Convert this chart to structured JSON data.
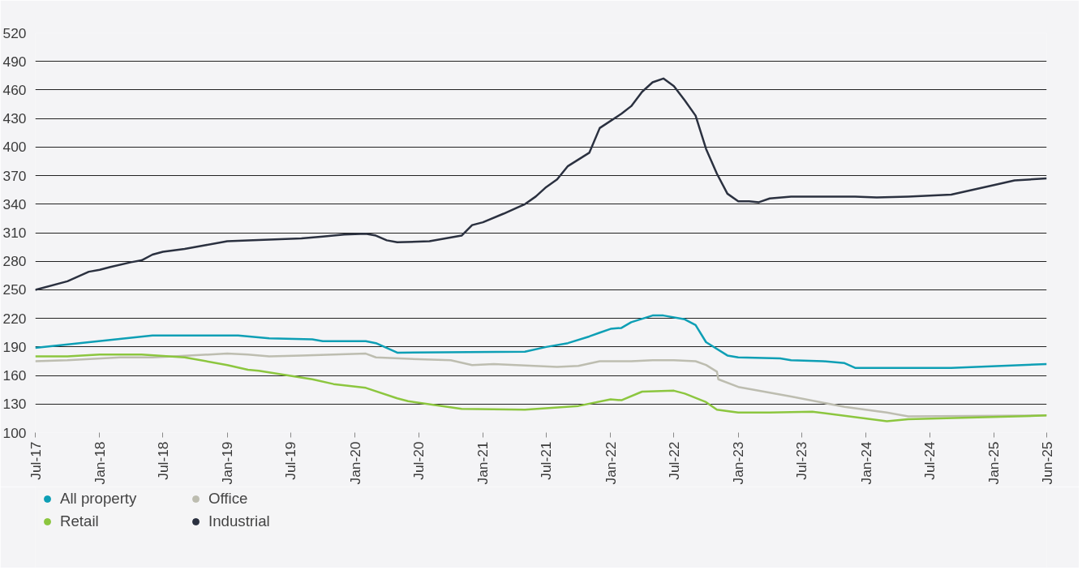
{
  "chart_data": {
    "type": "line",
    "xlim": [
      "2017-07",
      "2025-06"
    ],
    "xticks": [
      {
        "value": "2017-07",
        "label": "Jul-17"
      },
      {
        "value": "2018-01",
        "label": "Jan-18"
      },
      {
        "value": "2018-07",
        "label": "Jul-18"
      },
      {
        "value": "2019-01",
        "label": "Jan-19"
      },
      {
        "value": "2019-07",
        "label": "Jul-19"
      },
      {
        "value": "2020-01",
        "label": "Jan-20"
      },
      {
        "value": "2020-07",
        "label": "Jul-20"
      },
      {
        "value": "2021-01",
        "label": "Jan-21"
      },
      {
        "value": "2021-07",
        "label": "Jul-21"
      },
      {
        "value": "2022-01",
        "label": "Jan-22"
      },
      {
        "value": "2022-07",
        "label": "Jul-22"
      },
      {
        "value": "2023-01",
        "label": "Jan-23"
      },
      {
        "value": "2023-07",
        "label": "Jul-23"
      },
      {
        "value": "2024-01",
        "label": "Jan-24"
      },
      {
        "value": "2024-07",
        "label": "Jul-24"
      },
      {
        "value": "2025-01",
        "label": "Jan-25"
      },
      {
        "value": "2025-06",
        "label": "Jun-25"
      }
    ],
    "ylim": [
      100,
      520
    ],
    "yticks": [
      100,
      130,
      160,
      190,
      220,
      250,
      280,
      310,
      340,
      370,
      400,
      430,
      460,
      490,
      520
    ],
    "grid": "y",
    "legend": "bottom",
    "line_style": "solid",
    "series": [
      {
        "name": "All property",
        "color": "#0e9fb5",
        "x": [
          "2017-07",
          "2018-06",
          "2019-02",
          "2019-05",
          "2019-09",
          "2019-10",
          "2020-02",
          "2020-03",
          "2020-05",
          "2021-05",
          "2021-07",
          "2021-09",
          "2021-11",
          "2021-12",
          "2022-01",
          "2022-02",
          "2022-03",
          "2022-05",
          "2022-06",
          "2022-08",
          "2022-09",
          "2022-10",
          "2022-12",
          "2023-01",
          "2023-05",
          "2023-06",
          "2023-09",
          "2023-11",
          "2023-12",
          "2024-09",
          "2025-06"
        ],
        "values": [
          189,
          202,
          202,
          199,
          198,
          196,
          196,
          194,
          184,
          185,
          190,
          194,
          201,
          205,
          209,
          210,
          216,
          223,
          223,
          219,
          213,
          195,
          181,
          179,
          178,
          176,
          175,
          173,
          168,
          168,
          172
        ]
      },
      {
        "name": "Office",
        "color": "#bdbdb0",
        "x": [
          "2017-07",
          "2017-10",
          "2018-03",
          "2018-06",
          "2018-08",
          "2019-01",
          "2019-03",
          "2019-05",
          "2019-08",
          "2019-11",
          "2020-02",
          "2020-03",
          "2020-07",
          "2020-10",
          "2020-12",
          "2021-02",
          "2021-08",
          "2021-10",
          "2021-12",
          "2022-03",
          "2022-05",
          "2022-07",
          "2022-09",
          "2022-10",
          "2022-11",
          "2022-11-05",
          "2023-01",
          "2023-06",
          "2023-11",
          "2024-03",
          "2024-05",
          "2025-06"
        ],
        "values": [
          175,
          176,
          179,
          179,
          180,
          183,
          182,
          180,
          181,
          182,
          183,
          179,
          177,
          176,
          171,
          172,
          169,
          170,
          175,
          175,
          176,
          176,
          175,
          171,
          164,
          156,
          148,
          138,
          127,
          121,
          117,
          118
        ]
      },
      {
        "name": "Retail",
        "color": "#8cc63f",
        "x": [
          "2017-07",
          "2017-10",
          "2018-01",
          "2018-05",
          "2018-09",
          "2019-01",
          "2019-03",
          "2019-04",
          "2019-09",
          "2019-11",
          "2020-02",
          "2020-05",
          "2020-06",
          "2020-11",
          "2021-05",
          "2021-10",
          "2022-01",
          "2022-02",
          "2022-04",
          "2022-07",
          "2022-08",
          "2022-10",
          "2022-11",
          "2023-01",
          "2023-04",
          "2023-08",
          "2024-03",
          "2024-05",
          "2025-06"
        ],
        "values": [
          180,
          180,
          182,
          182,
          179,
          171,
          166,
          165,
          156,
          151,
          147,
          136,
          133,
          125,
          124,
          128,
          135,
          134,
          143,
          144,
          141,
          132,
          124,
          121,
          121,
          122,
          112,
          114,
          118
        ]
      },
      {
        "name": "Industrial",
        "color": "#2b3140",
        "x": [
          "2017-07",
          "2017-10",
          "2017-12",
          "2018-01",
          "2018-02",
          "2018-04",
          "2018-05",
          "2018-06",
          "2018-07",
          "2018-09",
          "2018-11",
          "2019-01",
          "2019-03",
          "2019-08",
          "2019-10",
          "2019-12",
          "2020-02",
          "2020-03",
          "2020-04",
          "2020-05",
          "2020-08",
          "2020-11",
          "2020-12",
          "2021-01",
          "2021-03",
          "2021-05",
          "2021-06",
          "2021-07",
          "2021-08",
          "2021-09",
          "2021-11",
          "2021-12",
          "2022-02",
          "2022-03",
          "2022-04",
          "2022-05",
          "2022-06",
          "2022-07",
          "2022-08",
          "2022-09",
          "2022-10",
          "2022-11",
          "2022-12",
          "2023-01",
          "2023-02",
          "2023-03",
          "2023-04",
          "2023-06",
          "2023-12",
          "2024-02",
          "2024-05",
          "2024-09",
          "2025-01",
          "2025-03",
          "2025-06"
        ],
        "values": [
          250,
          259,
          269,
          271,
          274,
          279,
          281,
          287,
          290,
          293,
          297,
          301,
          302,
          304,
          306,
          308,
          309,
          307,
          302,
          300,
          301,
          307,
          318,
          321,
          330,
          340,
          348,
          358,
          366,
          380,
          394,
          420,
          435,
          443,
          458,
          468,
          472,
          464,
          449,
          433,
          398,
          372,
          351,
          343,
          343,
          342,
          346,
          348,
          348,
          347,
          348,
          350,
          360,
          365,
          367
        ]
      }
    ]
  }
}
